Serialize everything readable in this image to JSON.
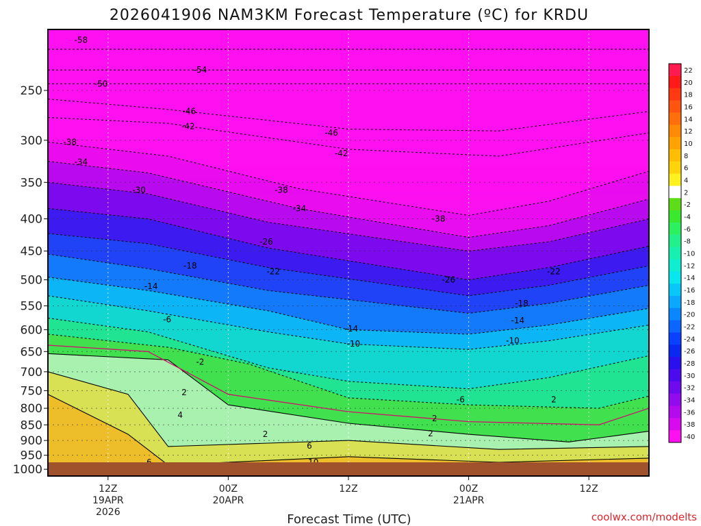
{
  "chart_data": {
    "type": "heatmap",
    "title": "2026041906 NAM3KM Forecast Temperature (ºC) for KRDU",
    "xlabel": "Forecast Time (UTC)",
    "ylabel": "",
    "credit": "coolwx.com/modelts",
    "y_ticks": [
      250,
      300,
      350,
      400,
      450,
      500,
      550,
      600,
      650,
      700,
      750,
      800,
      850,
      900,
      950,
      1000
    ],
    "y_tick_labels": [
      "250",
      "300",
      "350",
      "400",
      "450",
      "500",
      "550",
      "600",
      "650",
      "700",
      "750",
      "800",
      "850",
      "900",
      "950",
      "1000"
    ],
    "ylim": [
      1025,
      200
    ],
    "x_ticks": [
      {
        "hours": 6,
        "lines": [
          "12Z",
          "19APR",
          "2026"
        ]
      },
      {
        "hours": 18,
        "lines": [
          "00Z",
          "20APR"
        ]
      },
      {
        "hours": 30,
        "lines": [
          "12Z"
        ]
      },
      {
        "hours": 42,
        "lines": [
          "00Z",
          "21APR"
        ]
      },
      {
        "hours": 54,
        "lines": [
          "12Z"
        ]
      }
    ],
    "xlim": [
      0,
      60
    ],
    "colorbar_levels": [
      22,
      20,
      18,
      16,
      14,
      12,
      10,
      8,
      6,
      4,
      2,
      -2,
      -4,
      -6,
      -8,
      -10,
      -12,
      -14,
      -16,
      -18,
      -20,
      -22,
      -24,
      -26,
      -28,
      -30,
      -32,
      -34,
      -36,
      -38,
      -40
    ],
    "colorbar_labels": [
      "22",
      "20",
      "18",
      "16",
      "14",
      "12",
      "10",
      "8",
      "6",
      "4",
      "2",
      "-2",
      "-4",
      "-6",
      "-8",
      "-10",
      "-12",
      "-14",
      "-16",
      "-18",
      "-20",
      "-22",
      "-24",
      "-26",
      "-28",
      "-30",
      "-32",
      "-34",
      "-36",
      "-38",
      "-40"
    ],
    "colorbar_colors": [
      "#ff1a50",
      "#ff1a1a",
      "#ff3a12",
      "#ff5510",
      "#ff700c",
      "#ff8a08",
      "#ffa305",
      "#ffbd05",
      "#ffd40a",
      "#fff020",
      "#ffffff",
      "#5ddc18",
      "#3be830",
      "#2df060",
      "#22f08a",
      "#18f0b0",
      "#10eed0",
      "#08e6ee",
      "#08c8f8",
      "#0aa8ff",
      "#0a86ff",
      "#0a66ff",
      "#0a40ff",
      "#0a28f0",
      "#2a10ee",
      "#4c0aee",
      "#700aee",
      "#920aee",
      "#b40aee",
      "#d80aee",
      "#ff10f0"
    ],
    "series": [
      {
        "name": "-58",
        "values": [
          [
            0,
            215
          ],
          [
            60,
            215
          ]
        ]
      },
      {
        "name": "-54",
        "values": [
          [
            0,
            232
          ],
          [
            60,
            232
          ]
        ]
      },
      {
        "name": "-50",
        "values": [
          [
            0,
            244
          ],
          [
            30,
            244
          ],
          [
            60,
            244
          ]
        ]
      },
      {
        "name": "-46",
        "values": [
          [
            0,
            258
          ],
          [
            12,
            268
          ],
          [
            30,
            288
          ],
          [
            45,
            290
          ],
          [
            60,
            270
          ]
        ]
      },
      {
        "name": "-42",
        "values": [
          [
            0,
            276
          ],
          [
            12,
            282
          ],
          [
            30,
            310
          ],
          [
            45,
            318
          ],
          [
            60,
            292
          ]
        ]
      },
      {
        "name": "-38",
        "values": [
          [
            0,
            302
          ],
          [
            12,
            318
          ],
          [
            25,
            358
          ],
          [
            42,
            395
          ],
          [
            50,
            375
          ],
          [
            60,
            336
          ]
        ]
      },
      {
        "name": "-34",
        "values": [
          [
            0,
            324
          ],
          [
            10,
            338
          ],
          [
            25,
            385
          ],
          [
            42,
            428
          ],
          [
            50,
            410
          ],
          [
            60,
            372
          ]
        ]
      },
      {
        "name": "-30",
        "values": [
          [
            0,
            350
          ],
          [
            10,
            365
          ],
          [
            22,
            405
          ],
          [
            42,
            450
          ],
          [
            50,
            435
          ],
          [
            60,
            400
          ]
        ]
      },
      {
        "name": "-26",
        "values": [
          [
            0,
            385
          ],
          [
            10,
            400
          ],
          [
            22,
            445
          ],
          [
            42,
            500
          ],
          [
            50,
            478
          ],
          [
            60,
            442
          ]
        ]
      },
      {
        "name": "-22",
        "values": [
          [
            0,
            422
          ],
          [
            10,
            438
          ],
          [
            22,
            478
          ],
          [
            42,
            530
          ],
          [
            50,
            510
          ],
          [
            60,
            475
          ]
        ]
      },
      {
        "name": "-18",
        "values": [
          [
            0,
            455
          ],
          [
            10,
            480
          ],
          [
            22,
            520
          ],
          [
            42,
            565
          ],
          [
            50,
            545
          ],
          [
            60,
            510
          ]
        ]
      },
      {
        "name": "-14",
        "values": [
          [
            0,
            495
          ],
          [
            10,
            520
          ],
          [
            22,
            560
          ],
          [
            30,
            600
          ],
          [
            42,
            610
          ],
          [
            50,
            590
          ],
          [
            60,
            555
          ]
        ]
      },
      {
        "name": "-10",
        "values": [
          [
            0,
            530
          ],
          [
            10,
            560
          ],
          [
            22,
            605
          ],
          [
            30,
            632
          ],
          [
            42,
            645
          ],
          [
            50,
            625
          ],
          [
            60,
            590
          ]
        ]
      },
      {
        "name": "-6",
        "values": [
          [
            0,
            575
          ],
          [
            10,
            605
          ],
          [
            22,
            690
          ],
          [
            30,
            725
          ],
          [
            42,
            745
          ],
          [
            50,
            715
          ],
          [
            60,
            660
          ]
        ]
      },
      {
        "name": "-2",
        "values": [
          [
            0,
            610
          ],
          [
            12,
            640
          ],
          [
            20,
            680
          ],
          [
            30,
            770
          ],
          [
            42,
            790
          ],
          [
            55,
            800
          ],
          [
            60,
            765
          ]
        ]
      },
      {
        "name": "2",
        "values": [
          [
            0,
            655
          ],
          [
            12,
            670
          ],
          [
            18,
            790
          ],
          [
            30,
            845
          ],
          [
            42,
            880
          ],
          [
            52,
            905
          ],
          [
            60,
            870
          ]
        ]
      },
      {
        "name": "6",
        "values": [
          [
            0,
            700
          ],
          [
            8,
            760
          ],
          [
            12,
            920
          ],
          [
            30,
            900
          ],
          [
            45,
            930
          ],
          [
            60,
            920
          ]
        ]
      },
      {
        "name": "10",
        "values": [
          [
            0,
            760
          ],
          [
            8,
            880
          ],
          [
            12,
            985
          ],
          [
            30,
            955
          ],
          [
            45,
            975
          ],
          [
            60,
            960
          ]
        ]
      }
    ],
    "contour_labels": [
      {
        "text": "-58",
        "x": 3.3,
        "y": 208
      },
      {
        "text": "-54",
        "x": 15.2,
        "y": 232
      },
      {
        "text": "-50",
        "x": 5.3,
        "y": 244
      },
      {
        "text": "-46",
        "x": 14.1,
        "y": 270
      },
      {
        "text": "-42",
        "x": 14.0,
        "y": 285
      },
      {
        "text": "-46",
        "x": 28.3,
        "y": 292
      },
      {
        "text": "-38",
        "x": 2.2,
        "y": 302
      },
      {
        "text": "-42",
        "x": 29.3,
        "y": 315
      },
      {
        "text": "-34",
        "x": 3.3,
        "y": 325
      },
      {
        "text": "-30",
        "x": 9.1,
        "y": 360
      },
      {
        "text": "-38",
        "x": 23.3,
        "y": 360
      },
      {
        "text": "-34",
        "x": 25.1,
        "y": 385
      },
      {
        "text": "-38",
        "x": 39.0,
        "y": 400
      },
      {
        "text": "-26",
        "x": 21.8,
        "y": 435
      },
      {
        "text": "-18",
        "x": 14.2,
        "y": 475
      },
      {
        "text": "-22",
        "x": 22.5,
        "y": 485
      },
      {
        "text": "-22",
        "x": 50.5,
        "y": 485
      },
      {
        "text": "-26",
        "x": 40.0,
        "y": 500
      },
      {
        "text": "-14",
        "x": 10.3,
        "y": 512
      },
      {
        "text": "-18",
        "x": 47.3,
        "y": 545
      },
      {
        "text": "-6",
        "x": 11.9,
        "y": 578
      },
      {
        "text": "-14",
        "x": 46.9,
        "y": 580
      },
      {
        "text": "-14",
        "x": 30.3,
        "y": 598
      },
      {
        "text": "-10",
        "x": 46.4,
        "y": 625
      },
      {
        "text": "-10",
        "x": 30.5,
        "y": 632
      },
      {
        "text": "-2",
        "x": 15.2,
        "y": 675
      },
      {
        "text": "2",
        "x": 13.6,
        "y": 755
      },
      {
        "text": "2",
        "x": 50.5,
        "y": 775
      },
      {
        "text": "-6",
        "x": 41.2,
        "y": 775
      },
      {
        "text": "4",
        "x": 13.2,
        "y": 820
      },
      {
        "text": "2",
        "x": 38.6,
        "y": 830
      },
      {
        "text": "2",
        "x": 21.7,
        "y": 880
      },
      {
        "text": "2",
        "x": 38.2,
        "y": 878
      },
      {
        "text": "6",
        "x": 26.1,
        "y": 918
      },
      {
        "text": "6",
        "x": 10.1,
        "y": 975
      },
      {
        "text": "10",
        "x": 26.5,
        "y": 975
      },
      {
        "text": "10",
        "x": 10.1,
        "y": 1005
      }
    ]
  }
}
